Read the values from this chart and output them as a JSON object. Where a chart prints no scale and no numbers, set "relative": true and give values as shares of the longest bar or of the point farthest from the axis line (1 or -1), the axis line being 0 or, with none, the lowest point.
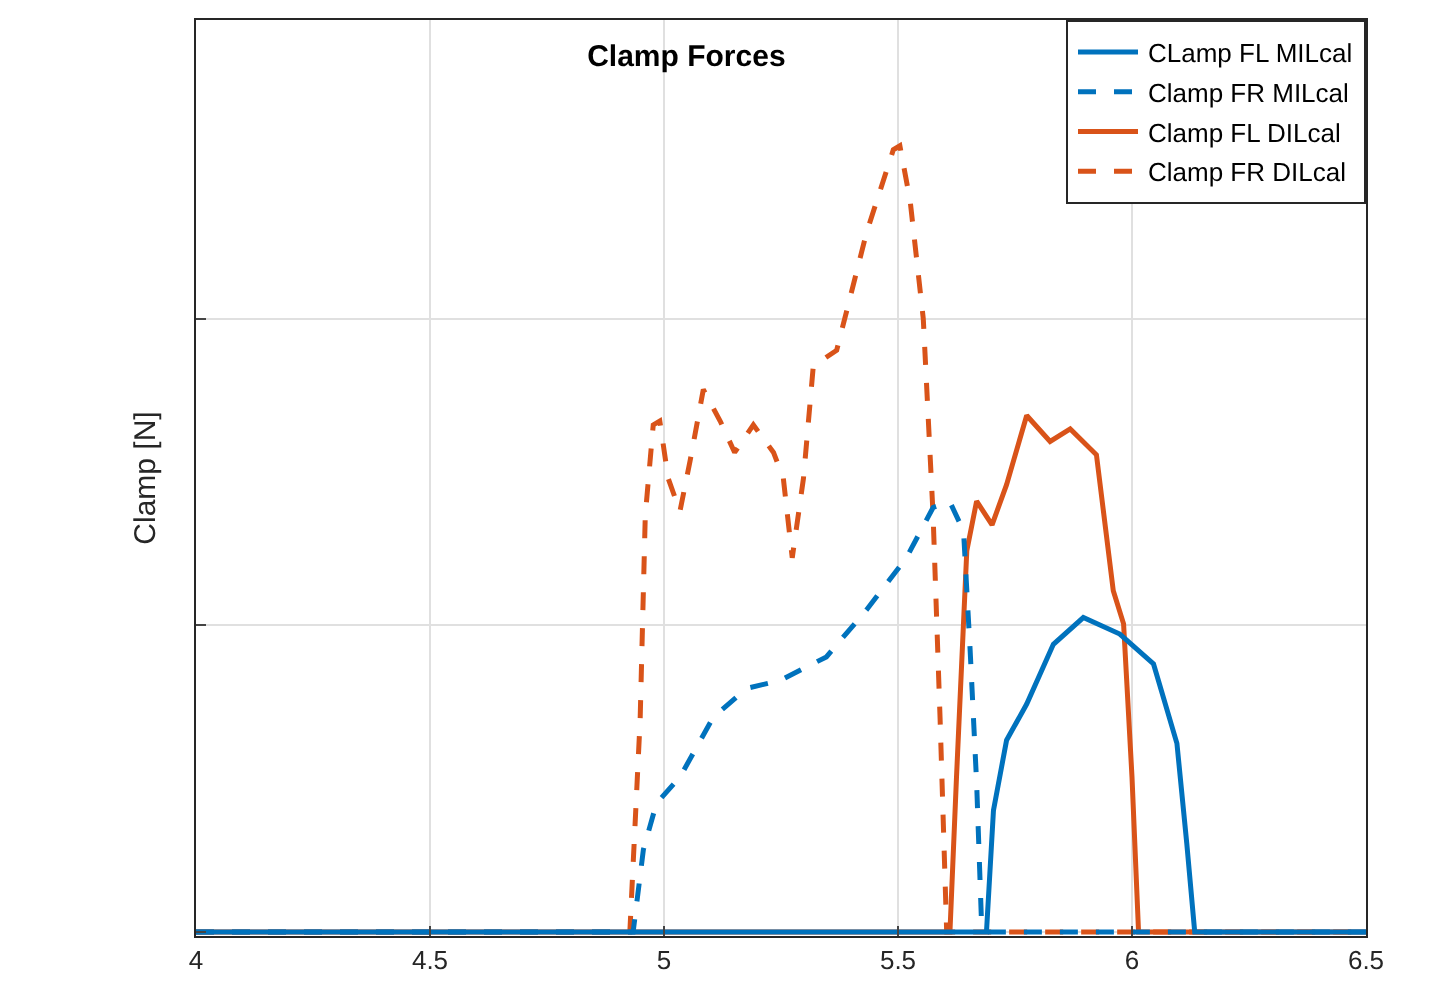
{
  "chart_data": {
    "type": "line",
    "title": "Clamp Forces",
    "ylabel": "Clamp [N]",
    "relative": true,
    "xlim": [
      4,
      6.5
    ],
    "xticks": [
      4,
      4.5,
      5,
      5.5,
      6,
      6.5
    ],
    "grid": true,
    "legend": "top right",
    "marker": "none",
    "series": [
      {
        "name": "CLamp FL MILcal",
        "color": "#0072bd",
        "line_style": "solid",
        "x": [
          4,
          5.689,
          5.704,
          5.732,
          5.775,
          5.832,
          5.896,
          5.974,
          6.046,
          6.096,
          6.117,
          6.134,
          6.5
        ],
        "values": [
          0,
          0,
          0.155,
          0.244,
          0.29,
          0.366,
          0.4,
          0.379,
          0.341,
          0.24,
          0.113,
          0,
          0
        ]
      },
      {
        "name": "Clamp FR MILcal",
        "color": "#0072bd",
        "line_style": "dashed",
        "x": [
          4,
          4.934,
          4.956,
          4.984,
          5.034,
          5.105,
          5.177,
          5.248,
          5.347,
          5.433,
          5.518,
          5.575,
          5.611,
          5.64,
          5.654,
          5.668,
          5.678,
          5.69,
          6.5
        ],
        "values": [
          0,
          0,
          0.105,
          0.164,
          0.197,
          0.273,
          0.31,
          0.32,
          0.35,
          0.41,
          0.476,
          0.54,
          0.547,
          0.51,
          0.36,
          0.19,
          0.02,
          0,
          0
        ]
      },
      {
        "name": "Clamp FL DILcal",
        "color": "#d95319",
        "line_style": "solid",
        "x": [
          4,
          5.611,
          5.625,
          5.647,
          5.668,
          5.701,
          5.732,
          5.775,
          5.825,
          5.868,
          5.924,
          5.96,
          5.982,
          6.0,
          6.014,
          6.5
        ],
        "values": [
          0,
          0,
          0.197,
          0.485,
          0.548,
          0.518,
          0.569,
          0.657,
          0.624,
          0.64,
          0.607,
          0.434,
          0.392,
          0.197,
          0,
          0
        ]
      },
      {
        "name": "Clamp FR DILcal",
        "color": "#d95319",
        "line_style": "dashed",
        "x": [
          4,
          4.927,
          4.949,
          4.96,
          4.977,
          4.991,
          5.009,
          5.034,
          5.056,
          5.084,
          5.12,
          5.151,
          5.191,
          5.234,
          5.255,
          5.274,
          5.298,
          5.319,
          5.369,
          5.433,
          5.49,
          5.504,
          5.526,
          5.554,
          5.575,
          5.59,
          5.604,
          6.5
        ],
        "values": [
          0,
          0,
          0.27,
          0.53,
          0.645,
          0.65,
          0.577,
          0.535,
          0.6,
          0.69,
          0.65,
          0.61,
          0.645,
          0.61,
          0.577,
          0.476,
          0.577,
          0.72,
          0.74,
          0.89,
          0.995,
          1.0,
          0.93,
          0.78,
          0.53,
          0.27,
          0,
          0
        ]
      }
    ]
  }
}
